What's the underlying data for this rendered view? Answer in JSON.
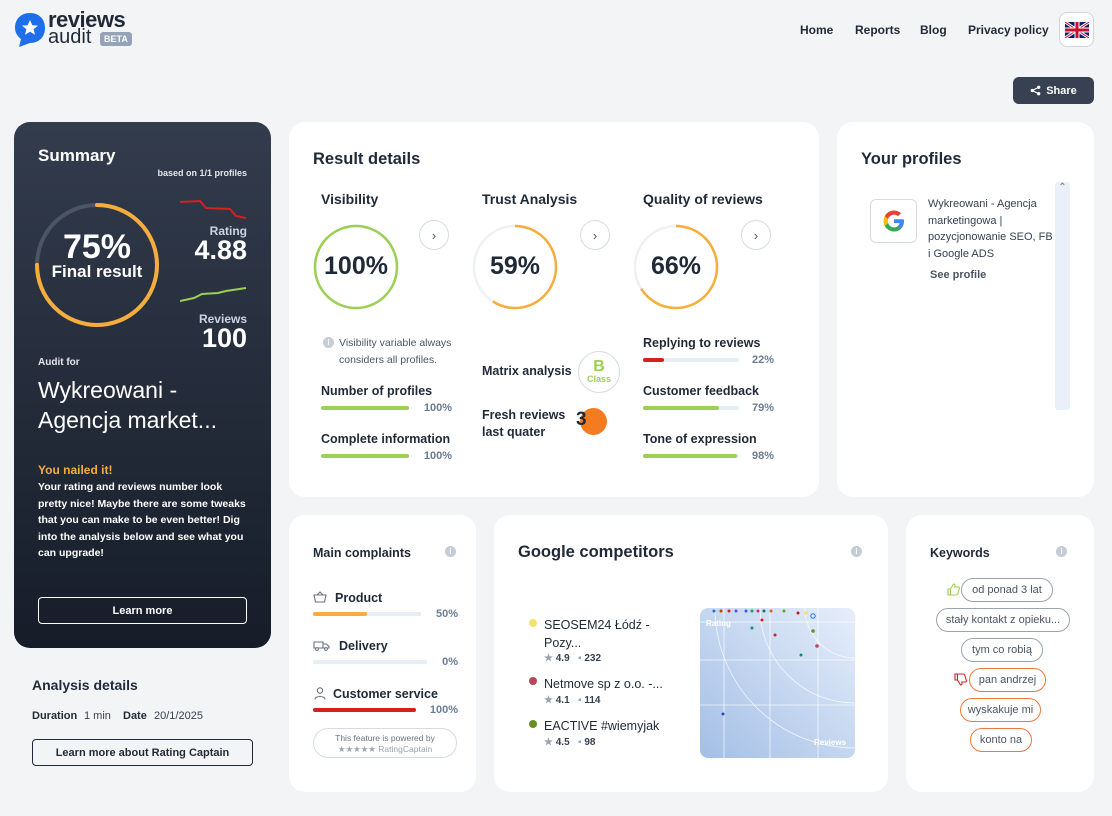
{
  "header": {
    "logo_line1": "reviews",
    "logo_line2": "audit",
    "logo_badge": "BETA",
    "nav": [
      "Home",
      "Reports",
      "Blog",
      "Privacy policy"
    ],
    "share_label": "Share"
  },
  "summary": {
    "title": "Summary",
    "based_on": "based on 1/1 profiles",
    "result_pct": "75%",
    "result_label": "Final result",
    "result_fraction": 0.75,
    "rating_label": "Rating",
    "rating_value": "4.88",
    "reviews_label": "Reviews",
    "reviews_value": "100",
    "audit_for": "Audit for",
    "company_line1": "Wykreowani -",
    "company_line2": "Agencja market...",
    "nailed_title": "You nailed it!",
    "nailed_text": "Your rating and reviews number look pretty nice! Maybe there are some tweaks that you can make to be even better! Dig into the analysis below and see what you can upgrade!",
    "learn_more": "Learn more"
  },
  "analysis": {
    "title": "Analysis details",
    "duration_label": "Duration",
    "duration_value": "1 min",
    "date_label": "Date",
    "date_value": "20/1/2025",
    "rating_captain_button": "Learn more about Rating Captain"
  },
  "result_details": {
    "title": "Result details",
    "visibility": {
      "title": "Visibility",
      "value": "100%",
      "fraction": 1.0,
      "note": "Visibility variable always considers all profiles.",
      "metrics": [
        {
          "label": "Number of profiles",
          "value": "100%",
          "fraction": 1.0
        },
        {
          "label": "Complete information",
          "value": "100%",
          "fraction": 1.0
        }
      ]
    },
    "trust": {
      "title": "Trust Analysis",
      "value": "59%",
      "fraction": 0.59,
      "matrix_label": "Matrix analysis",
      "matrix_grade": "B",
      "matrix_class": "Class",
      "fresh_label_1": "Fresh reviews",
      "fresh_label_2": "last quater",
      "fresh_value": "3"
    },
    "quality": {
      "title": "Quality of reviews",
      "value": "66%",
      "fraction": 0.66,
      "metrics": [
        {
          "label": "Replying to reviews",
          "value": "22%",
          "fraction": 0.22,
          "color": "#d61f1f"
        },
        {
          "label": "Customer feedback",
          "value": "79%",
          "fraction": 0.79,
          "color": "#9ccf52"
        },
        {
          "label": "Tone of expression",
          "value": "98%",
          "fraction": 0.98,
          "color": "#9ccf52"
        }
      ]
    }
  },
  "profiles": {
    "title": "Your profiles",
    "items": [
      {
        "name": "Wykreowani - Agencja marketingowa | pozycjonowanie SEO, FB i Google ADS",
        "link": "See profile"
      }
    ]
  },
  "complaints": {
    "title": "Main complaints",
    "items": [
      {
        "label": "Product",
        "value": "50%",
        "fraction": 0.5,
        "color": "#f6ad3b",
        "icon": "basket-icon"
      },
      {
        "label": "Delivery",
        "value": "0%",
        "fraction": 0.0,
        "color": "#f6ad3b",
        "icon": "truck-icon"
      },
      {
        "label": "Customer service",
        "value": "100%",
        "fraction": 1.0,
        "color": "#d61f1f",
        "icon": "person-icon"
      }
    ],
    "powered_line1": "This feature is powered by",
    "powered_line2": "RatingCaptain"
  },
  "competitors": {
    "title": "Google competitors",
    "items": [
      {
        "name": "SEOSEM24 Łódź -",
        "name2": "Pozy...",
        "rating": "4.9",
        "reviews": "232",
        "dot": "#f5e26a"
      },
      {
        "name": "Netmove sp z o.o. -...",
        "name2": "",
        "rating": "4.1",
        "reviews": "114",
        "dot": "#b8475b"
      },
      {
        "name": "EACTIVE #wiemyjak",
        "name2": "",
        "rating": "4.5",
        "reviews": "98",
        "dot": "#6b8e23"
      }
    ],
    "plot_rating": "Rating",
    "plot_reviews": "Reviews"
  },
  "keywords": {
    "title": "Keywords",
    "positive": [
      "od ponad 3 lat",
      "stały kontakt z opieku...",
      "tym co robią"
    ],
    "negative": [
      "pan andrzej",
      "wyskakuje mi",
      "konto na"
    ]
  }
}
